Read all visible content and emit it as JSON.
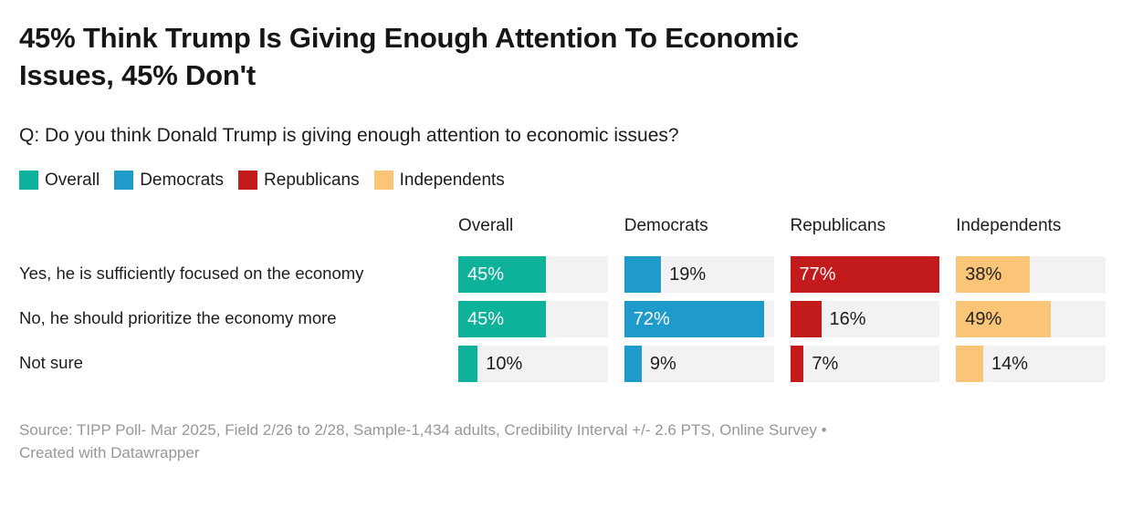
{
  "header": {
    "title": "45% Think Trump Is Giving Enough Attention To Economic\nIssues, 45% Don't",
    "subtitle": "Q: Do you think Donald Trump is giving enough attention to economic issues?"
  },
  "chart_data": {
    "type": "bar",
    "title": "45% Think Trump Is Giving Enough Attention To Economic Issues, 45% Don't",
    "categories": [
      "Yes, he is sufficiently focused on the economy",
      "No, he should prioritize the economy more",
      "Not sure"
    ],
    "series": [
      {
        "name": "Overall",
        "color": "#0eb199",
        "inside_text": "#ffffff",
        "values": [
          45,
          45,
          10
        ]
      },
      {
        "name": "Democrats",
        "color": "#1f9bcb",
        "inside_text": "#ffffff",
        "values": [
          19,
          72,
          9
        ]
      },
      {
        "name": "Republicans",
        "color": "#c31a1b",
        "inside_text": "#ffffff",
        "values": [
          77,
          16,
          7
        ]
      },
      {
        "name": "Independents",
        "color": "#fac576",
        "inside_text": "#222222",
        "values": [
          38,
          49,
          14
        ]
      }
    ],
    "value_suffix": "%",
    "scale_max": 77,
    "inside_label_min_value": 35,
    "track_color": "#f2f2f2",
    "outside_label_color": "#1d1d1d",
    "legend_position": "top",
    "grid": false
  },
  "footer": {
    "source": "Source: TIPP Poll- Mar 2025, Field 2/26 to 2/28, Sample-1,434 adults, Credibility Interval +/- 2.6 PTS, Online Survey •\nCreated with Datawrapper"
  }
}
